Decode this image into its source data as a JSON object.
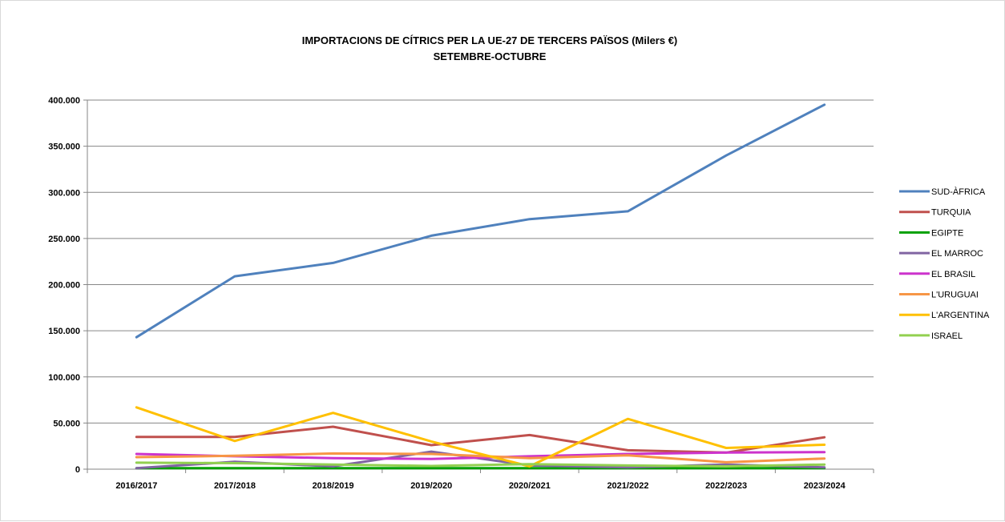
{
  "chart_data": {
    "type": "line",
    "title": "IMPORTACIONS DE CÍTRICS PER LA UE-27 DE TERCERS PAÏSOS   (Milers €)",
    "subtitle": "SETEMBRE-OCTUBRE",
    "xlabel": "",
    "ylabel": "",
    "categories": [
      "2016/2017",
      "2017/2018",
      "2018/2019",
      "2019/2020",
      "2020/2021",
      "2021/2022",
      "2022/2023",
      "2023/2024"
    ],
    "ylim": [
      0,
      400000
    ],
    "yticks": [
      {
        "value": 0,
        "label": "0"
      },
      {
        "value": 50000,
        "label": "50.000"
      },
      {
        "value": 100000,
        "label": "100.000"
      },
      {
        "value": 150000,
        "label": "150.000"
      },
      {
        "value": 200000,
        "label": "200.000"
      },
      {
        "value": 250000,
        "label": "250.000"
      },
      {
        "value": 300000,
        "label": "300.000"
      },
      {
        "value": 350000,
        "label": "350.000"
      },
      {
        "value": 400000,
        "label": "400.000"
      }
    ],
    "grid": true,
    "legend_position": "right",
    "series": [
      {
        "name": "SUD-ÀFRICA",
        "color": "#4f81bd",
        "values": [
          143000,
          209000,
          223500,
          253000,
          271000,
          279500,
          340000,
          395000
        ]
      },
      {
        "name": "TURQUIA",
        "color": "#c0504d",
        "values": [
          35000,
          35000,
          46000,
          26000,
          37000,
          20500,
          18000,
          34500
        ]
      },
      {
        "name": "EGIPTE",
        "color": "#00a000",
        "values": [
          1000,
          1000,
          1000,
          1000,
          1000,
          1000,
          1000,
          1000
        ]
      },
      {
        "name": "EL MARROC",
        "color": "#8064a2",
        "values": [
          1000,
          8000,
          3000,
          19000,
          4000,
          2000,
          5000,
          2000
        ]
      },
      {
        "name": "EL BRASIL",
        "color": "#cc33cc",
        "values": [
          16500,
          14000,
          12000,
          11000,
          14000,
          16500,
          18000,
          18500
        ]
      },
      {
        "name": "L'URUGUAI",
        "color": "#f79646",
        "values": [
          13000,
          14500,
          17000,
          16500,
          12000,
          15000,
          7500,
          11500
        ]
      },
      {
        "name": "L'ARGENTINA",
        "color": "#ffc000",
        "values": [
          67000,
          30500,
          61000,
          30000,
          3000,
          54500,
          23000,
          26500
        ]
      },
      {
        "name": "ISRAEL",
        "color": "#92d050",
        "values": [
          7000,
          6500,
          5000,
          3500,
          5500,
          4000,
          3000,
          5000
        ]
      }
    ]
  }
}
